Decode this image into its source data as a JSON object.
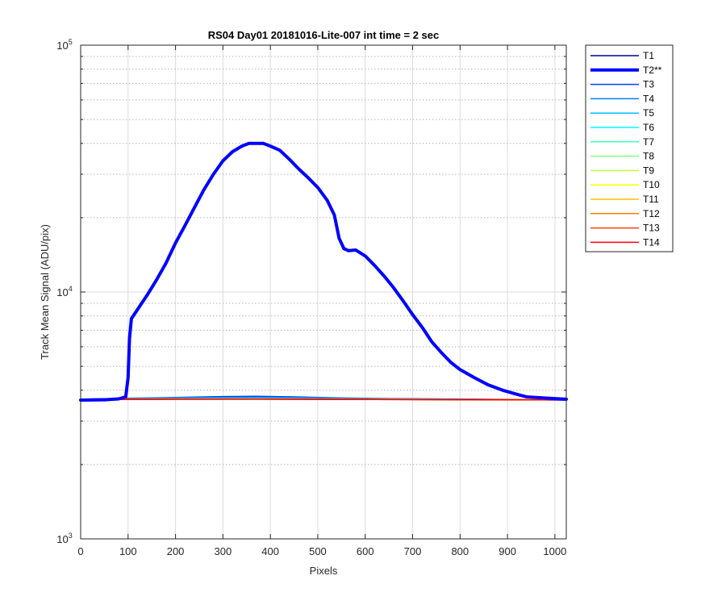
{
  "chart_data": {
    "type": "line",
    "title": "RS04 Day01 20181016-Lite-007 int time = 2 sec",
    "xlabel": "Pixels",
    "ylabel": "Track Mean Signal (ADU/pix)",
    "xlim": [
      0,
      1024
    ],
    "ylim": [
      1000,
      100000
    ],
    "yscale": "log",
    "grid": true,
    "legend_position": "outside-top-right",
    "x_ticks": [
      0,
      100,
      200,
      300,
      400,
      500,
      600,
      700,
      800,
      900,
      1000
    ],
    "x_tick_labels": [
      "0",
      "100",
      "200",
      "300",
      "400",
      "500",
      "600",
      "700",
      "800",
      "900",
      "1000"
    ],
    "y_ticks": [
      {
        "value": 1000,
        "base": "10",
        "exp": "3"
      },
      {
        "value": 10000,
        "base": "10",
        "exp": "4"
      },
      {
        "value": 100000,
        "base": "10",
        "exp": "5"
      }
    ],
    "series": [
      {
        "name": "T1",
        "color": "#00008f",
        "width": 1.5,
        "points": [
          [
            0,
            3680
          ],
          [
            100,
            3700
          ],
          [
            200,
            3720
          ],
          [
            300,
            3740
          ],
          [
            370,
            3750
          ],
          [
            450,
            3730
          ],
          [
            550,
            3700
          ],
          [
            650,
            3690
          ],
          [
            750,
            3680
          ],
          [
            850,
            3670
          ],
          [
            950,
            3660
          ],
          [
            1024,
            3650
          ]
        ]
      },
      {
        "name": "T2**",
        "color": "#0000ff",
        "width": 4,
        "points": [
          [
            0,
            3650
          ],
          [
            50,
            3660
          ],
          [
            80,
            3690
          ],
          [
            95,
            3760
          ],
          [
            100,
            4500
          ],
          [
            103,
            6500
          ],
          [
            107,
            7800
          ],
          [
            120,
            8500
          ],
          [
            140,
            9700
          ],
          [
            160,
            11200
          ],
          [
            180,
            13100
          ],
          [
            200,
            15800
          ],
          [
            220,
            18600
          ],
          [
            240,
            22000
          ],
          [
            260,
            26000
          ],
          [
            280,
            30000
          ],
          [
            300,
            34000
          ],
          [
            320,
            37000
          ],
          [
            340,
            39000
          ],
          [
            355,
            40000
          ],
          [
            370,
            40000
          ],
          [
            385,
            40000
          ],
          [
            400,
            39000
          ],
          [
            420,
            37500
          ],
          [
            440,
            34500
          ],
          [
            460,
            31500
          ],
          [
            480,
            29000
          ],
          [
            500,
            26500
          ],
          [
            520,
            23500
          ],
          [
            535,
            20500
          ],
          [
            545,
            16500
          ],
          [
            555,
            15000
          ],
          [
            565,
            14700
          ],
          [
            580,
            14800
          ],
          [
            600,
            14000
          ],
          [
            620,
            12800
          ],
          [
            640,
            11600
          ],
          [
            660,
            10400
          ],
          [
            680,
            9200
          ],
          [
            700,
            8100
          ],
          [
            720,
            7200
          ],
          [
            740,
            6300
          ],
          [
            760,
            5700
          ],
          [
            780,
            5200
          ],
          [
            800,
            4850
          ],
          [
            830,
            4500
          ],
          [
            860,
            4200
          ],
          [
            890,
            4000
          ],
          [
            920,
            3850
          ],
          [
            940,
            3760
          ],
          [
            970,
            3730
          ],
          [
            1000,
            3700
          ],
          [
            1024,
            3680
          ]
        ]
      },
      {
        "name": "T3",
        "color": "#0040ff",
        "width": 1.5,
        "points": [
          [
            0,
            3680
          ],
          [
            100,
            3710
          ],
          [
            200,
            3740
          ],
          [
            300,
            3770
          ],
          [
            370,
            3780
          ],
          [
            450,
            3760
          ],
          [
            550,
            3720
          ],
          [
            650,
            3700
          ],
          [
            750,
            3690
          ],
          [
            850,
            3680
          ],
          [
            950,
            3670
          ],
          [
            1024,
            3660
          ]
        ]
      },
      {
        "name": "T4",
        "color": "#0080ff",
        "width": 1.5,
        "points": [
          [
            0,
            3670
          ],
          [
            100,
            3700
          ],
          [
            200,
            3720
          ],
          [
            300,
            3740
          ],
          [
            370,
            3745
          ],
          [
            450,
            3730
          ],
          [
            550,
            3710
          ],
          [
            650,
            3690
          ],
          [
            750,
            3680
          ],
          [
            850,
            3670
          ],
          [
            950,
            3660
          ],
          [
            1024,
            3650
          ]
        ]
      },
      {
        "name": "T5",
        "color": "#00bfff",
        "width": 1.5,
        "points": [
          [
            0,
            3670
          ],
          [
            200,
            3700
          ],
          [
            370,
            3710
          ],
          [
            550,
            3690
          ],
          [
            750,
            3675
          ],
          [
            1024,
            3660
          ]
        ]
      },
      {
        "name": "T6",
        "color": "#00ffff",
        "width": 1.5,
        "points": [
          [
            0,
            3670
          ],
          [
            200,
            3695
          ],
          [
            370,
            3700
          ],
          [
            550,
            3685
          ],
          [
            750,
            3672
          ],
          [
            1024,
            3660
          ]
        ]
      },
      {
        "name": "T7",
        "color": "#40ffbf",
        "width": 1.5,
        "points": [
          [
            0,
            3670
          ],
          [
            200,
            3690
          ],
          [
            370,
            3695
          ],
          [
            550,
            3682
          ],
          [
            750,
            3670
          ],
          [
            1024,
            3660
          ]
        ]
      },
      {
        "name": "T8",
        "color": "#80ff80",
        "width": 1.5,
        "points": [
          [
            0,
            3670
          ],
          [
            200,
            3688
          ],
          [
            370,
            3692
          ],
          [
            550,
            3680
          ],
          [
            750,
            3670
          ],
          [
            1024,
            3660
          ]
        ]
      },
      {
        "name": "T9",
        "color": "#bfff40",
        "width": 1.5,
        "points": [
          [
            0,
            3668
          ],
          [
            200,
            3685
          ],
          [
            370,
            3690
          ],
          [
            550,
            3678
          ],
          [
            750,
            3668
          ],
          [
            1024,
            3658
          ]
        ]
      },
      {
        "name": "T10",
        "color": "#ffff00",
        "width": 1.5,
        "points": [
          [
            0,
            3668
          ],
          [
            200,
            3683
          ],
          [
            370,
            3688
          ],
          [
            550,
            3677
          ],
          [
            750,
            3667
          ],
          [
            1024,
            3658
          ]
        ]
      },
      {
        "name": "T11",
        "color": "#ffbf00",
        "width": 1.5,
        "points": [
          [
            0,
            3668
          ],
          [
            200,
            3682
          ],
          [
            370,
            3686
          ],
          [
            550,
            3676
          ],
          [
            750,
            3666
          ],
          [
            1024,
            3657
          ]
        ]
      },
      {
        "name": "T12",
        "color": "#ff8000",
        "width": 1.5,
        "points": [
          [
            0,
            3667
          ],
          [
            200,
            3680
          ],
          [
            370,
            3684
          ],
          [
            550,
            3675
          ],
          [
            750,
            3665
          ],
          [
            1024,
            3656
          ]
        ]
      },
      {
        "name": "T13",
        "color": "#ff4000",
        "width": 1.5,
        "points": [
          [
            0,
            3667
          ],
          [
            200,
            3679
          ],
          [
            370,
            3682
          ],
          [
            550,
            3674
          ],
          [
            750,
            3664
          ],
          [
            1024,
            3656
          ]
        ]
      },
      {
        "name": "T14",
        "color": "#ff0000",
        "width": 1.5,
        "points": [
          [
            0,
            3666
          ],
          [
            200,
            3678
          ],
          [
            370,
            3680
          ],
          [
            550,
            3672
          ],
          [
            750,
            3663
          ],
          [
            1024,
            3655
          ]
        ]
      }
    ]
  }
}
